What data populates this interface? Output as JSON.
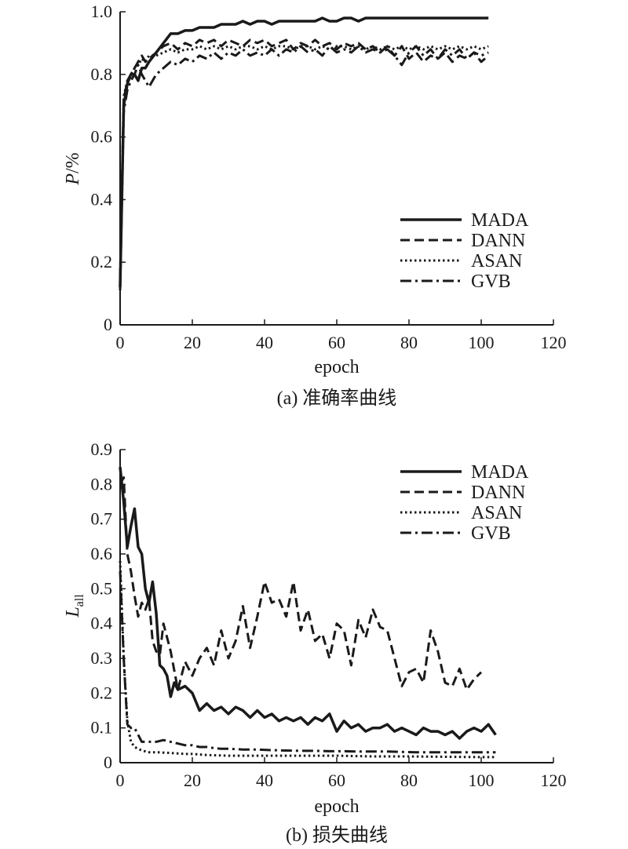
{
  "chart_data": [
    {
      "type": "line",
      "caption": "(a) 准确率曲线",
      "xlabel": "epoch",
      "ylabel_main": "P",
      "ylabel_suffix": "/%",
      "xlim": [
        0,
        120
      ],
      "ylim": [
        0,
        1.0
      ],
      "xticks": [
        "0",
        "20",
        "40",
        "60",
        "80",
        "100",
        "120"
      ],
      "yticks": [
        "0",
        "0.2",
        "0.4",
        "0.6",
        "0.8",
        "1.0"
      ],
      "grid": false,
      "legend_position": "bottom-right",
      "series": [
        {
          "name": "MADA",
          "style": "solid",
          "x": [
            0,
            1,
            2,
            3,
            4,
            5,
            6,
            7,
            8,
            10,
            12,
            14,
            16,
            18,
            20,
            22,
            24,
            26,
            28,
            30,
            32,
            34,
            36,
            38,
            40,
            42,
            44,
            46,
            48,
            50,
            52,
            54,
            56,
            58,
            60,
            62,
            64,
            66,
            68,
            70,
            72,
            74,
            76,
            78,
            80,
            82,
            84,
            86,
            88,
            90,
            92,
            94,
            96,
            98,
            100,
            102
          ],
          "y": [
            0.12,
            0.7,
            0.77,
            0.8,
            0.8,
            0.78,
            0.82,
            0.82,
            0.84,
            0.87,
            0.9,
            0.93,
            0.93,
            0.94,
            0.94,
            0.95,
            0.95,
            0.95,
            0.96,
            0.96,
            0.96,
            0.97,
            0.96,
            0.97,
            0.97,
            0.96,
            0.97,
            0.97,
            0.97,
            0.97,
            0.97,
            0.97,
            0.98,
            0.97,
            0.97,
            0.98,
            0.98,
            0.97,
            0.98,
            0.98,
            0.98,
            0.98,
            0.98,
            0.98,
            0.98,
            0.98,
            0.98,
            0.98,
            0.98,
            0.98,
            0.98,
            0.98,
            0.98,
            0.98,
            0.98,
            0.98
          ]
        },
        {
          "name": "DANN",
          "style": "dashed",
          "x": [
            0,
            1,
            2,
            3,
            4,
            5,
            6,
            7,
            8,
            10,
            12,
            14,
            16,
            18,
            20,
            22,
            24,
            26,
            28,
            30,
            32,
            34,
            36,
            38,
            40,
            42,
            44,
            46,
            48,
            50,
            52,
            54,
            56,
            58,
            60,
            62,
            64,
            66,
            68,
            70,
            72,
            74,
            76,
            78,
            80,
            82,
            84,
            86,
            88,
            90,
            92,
            94,
            96,
            98,
            100,
            102
          ],
          "y": [
            0.15,
            0.72,
            0.78,
            0.8,
            0.82,
            0.84,
            0.86,
            0.84,
            0.85,
            0.87,
            0.89,
            0.9,
            0.88,
            0.9,
            0.89,
            0.91,
            0.9,
            0.91,
            0.89,
            0.91,
            0.9,
            0.89,
            0.91,
            0.9,
            0.91,
            0.89,
            0.9,
            0.91,
            0.88,
            0.9,
            0.89,
            0.91,
            0.89,
            0.9,
            0.88,
            0.9,
            0.89,
            0.9,
            0.88,
            0.89,
            0.87,
            0.89,
            0.86,
            0.89,
            0.85,
            0.87,
            0.84,
            0.86,
            0.85,
            0.87,
            0.84,
            0.86,
            0.85,
            0.87,
            0.84,
            0.86
          ]
        },
        {
          "name": "ASAN",
          "style": "dotted",
          "x": [
            0,
            1,
            2,
            3,
            4,
            5,
            6,
            7,
            8,
            10,
            12,
            14,
            16,
            18,
            20,
            22,
            24,
            26,
            28,
            30,
            32,
            34,
            36,
            38,
            40,
            42,
            44,
            46,
            48,
            50,
            52,
            54,
            56,
            58,
            60,
            62,
            64,
            66,
            68,
            70,
            72,
            74,
            76,
            78,
            80,
            82,
            84,
            86,
            88,
            90,
            92,
            94,
            96,
            98,
            100,
            102
          ],
          "y": [
            0.13,
            0.73,
            0.78,
            0.8,
            0.82,
            0.83,
            0.85,
            0.84,
            0.86,
            0.86,
            0.87,
            0.88,
            0.87,
            0.88,
            0.88,
            0.89,
            0.88,
            0.89,
            0.88,
            0.89,
            0.88,
            0.89,
            0.89,
            0.88,
            0.89,
            0.88,
            0.89,
            0.89,
            0.88,
            0.89,
            0.89,
            0.88,
            0.89,
            0.88,
            0.89,
            0.89,
            0.88,
            0.89,
            0.88,
            0.89,
            0.88,
            0.89,
            0.88,
            0.89,
            0.88,
            0.89,
            0.88,
            0.89,
            0.88,
            0.89,
            0.88,
            0.89,
            0.88,
            0.89,
            0.88,
            0.89
          ]
        },
        {
          "name": "GVB",
          "style": "dashdot",
          "x": [
            0,
            1,
            2,
            3,
            4,
            5,
            6,
            7,
            8,
            10,
            12,
            14,
            16,
            18,
            20,
            22,
            24,
            26,
            28,
            30,
            32,
            34,
            36,
            38,
            40,
            42,
            44,
            46,
            48,
            50,
            52,
            54,
            56,
            58,
            60,
            62,
            64,
            66,
            68,
            70,
            72,
            74,
            76,
            78,
            80,
            82,
            84,
            86,
            88,
            90,
            92,
            94,
            96,
            98,
            100,
            102
          ],
          "y": [
            0.11,
            0.68,
            0.75,
            0.78,
            0.8,
            0.83,
            0.8,
            0.78,
            0.76,
            0.8,
            0.82,
            0.84,
            0.83,
            0.85,
            0.84,
            0.86,
            0.85,
            0.87,
            0.85,
            0.87,
            0.86,
            0.88,
            0.86,
            0.87,
            0.86,
            0.88,
            0.86,
            0.88,
            0.87,
            0.89,
            0.87,
            0.88,
            0.86,
            0.89,
            0.87,
            0.88,
            0.87,
            0.89,
            0.87,
            0.88,
            0.87,
            0.88,
            0.86,
            0.83,
            0.87,
            0.89,
            0.86,
            0.88,
            0.85,
            0.88,
            0.86,
            0.88,
            0.85,
            0.87,
            0.86,
            0.87
          ]
        }
      ]
    },
    {
      "type": "line",
      "caption": "(b) 损失曲线",
      "xlabel": "epoch",
      "ylabel_main": "L",
      "ylabel_sub": "all",
      "xlim": [
        0,
        120
      ],
      "ylim": [
        0,
        0.9
      ],
      "xticks": [
        "0",
        "20",
        "40",
        "60",
        "80",
        "100",
        "120"
      ],
      "yticks": [
        "0",
        "0.1",
        "0.2",
        "0.3",
        "0.4",
        "0.5",
        "0.6",
        "0.7",
        "0.8",
        "0.9"
      ],
      "grid": false,
      "legend_position": "top-right",
      "series": [
        {
          "name": "MADA",
          "style": "solid",
          "x": [
            0,
            1,
            2,
            3,
            4,
            5,
            6,
            7,
            8,
            9,
            10,
            11,
            12,
            13,
            14,
            15,
            16,
            18,
            20,
            22,
            24,
            26,
            28,
            30,
            32,
            34,
            36,
            38,
            40,
            42,
            44,
            46,
            48,
            50,
            52,
            54,
            56,
            58,
            60,
            62,
            64,
            66,
            68,
            70,
            72,
            74,
            76,
            78,
            80,
            82,
            84,
            86,
            88,
            90,
            92,
            94,
            96,
            98,
            100,
            102,
            104
          ],
          "y": [
            0.85,
            0.75,
            0.62,
            0.68,
            0.73,
            0.62,
            0.6,
            0.5,
            0.46,
            0.52,
            0.43,
            0.28,
            0.27,
            0.25,
            0.19,
            0.23,
            0.21,
            0.22,
            0.2,
            0.15,
            0.17,
            0.15,
            0.16,
            0.14,
            0.16,
            0.15,
            0.13,
            0.15,
            0.13,
            0.14,
            0.12,
            0.13,
            0.12,
            0.13,
            0.11,
            0.13,
            0.12,
            0.14,
            0.09,
            0.12,
            0.1,
            0.11,
            0.09,
            0.1,
            0.1,
            0.11,
            0.09,
            0.1,
            0.09,
            0.08,
            0.1,
            0.09,
            0.09,
            0.08,
            0.09,
            0.07,
            0.09,
            0.1,
            0.09,
            0.11,
            0.08
          ]
        },
        {
          "name": "DANN",
          "style": "dashed",
          "x": [
            0,
            1,
            2,
            3,
            4,
            5,
            6,
            7,
            8,
            9,
            10,
            11,
            12,
            14,
            16,
            18,
            20,
            22,
            24,
            26,
            28,
            30,
            32,
            34,
            36,
            38,
            40,
            42,
            44,
            46,
            48,
            50,
            52,
            54,
            56,
            58,
            60,
            62,
            64,
            66,
            68,
            70,
            72,
            74,
            76,
            78,
            80,
            82,
            84,
            86,
            88,
            90,
            92,
            94,
            96,
            98,
            100
          ],
          "y": [
            0.8,
            0.82,
            0.6,
            0.55,
            0.48,
            0.42,
            0.46,
            0.44,
            0.47,
            0.35,
            0.32,
            0.31,
            0.4,
            0.32,
            0.21,
            0.29,
            0.25,
            0.3,
            0.33,
            0.28,
            0.38,
            0.3,
            0.35,
            0.45,
            0.33,
            0.42,
            0.52,
            0.46,
            0.47,
            0.42,
            0.52,
            0.38,
            0.44,
            0.35,
            0.37,
            0.3,
            0.4,
            0.38,
            0.28,
            0.41,
            0.36,
            0.44,
            0.39,
            0.38,
            0.3,
            0.22,
            0.26,
            0.27,
            0.23,
            0.38,
            0.32,
            0.23,
            0.22,
            0.27,
            0.21,
            0.24,
            0.26
          ]
        },
        {
          "name": "ASAN",
          "style": "dotted",
          "x": [
            0,
            1,
            2,
            3,
            4,
            6,
            8,
            10,
            14,
            18,
            20,
            24,
            30,
            40,
            50,
            60,
            70,
            80,
            90,
            100,
            104
          ],
          "y": [
            0.58,
            0.3,
            0.12,
            0.06,
            0.045,
            0.035,
            0.03,
            0.03,
            0.028,
            0.025,
            0.025,
            0.022,
            0.02,
            0.02,
            0.02,
            0.02,
            0.018,
            0.018,
            0.017,
            0.016,
            0.016
          ]
        },
        {
          "name": "GVB",
          "style": "dashdot",
          "x": [
            0,
            1,
            2,
            3,
            4,
            5,
            6,
            8,
            10,
            12,
            14,
            16,
            18,
            20,
            22,
            24,
            26,
            28,
            30,
            34,
            38,
            42,
            46,
            50,
            54,
            58,
            62,
            66,
            70,
            74,
            78,
            82,
            86,
            90,
            94,
            98,
            102,
            104
          ],
          "y": [
            0.55,
            0.3,
            0.11,
            0.1,
            0.1,
            0.08,
            0.06,
            0.06,
            0.06,
            0.065,
            0.06,
            0.055,
            0.05,
            0.05,
            0.045,
            0.045,
            0.042,
            0.04,
            0.04,
            0.038,
            0.038,
            0.036,
            0.035,
            0.034,
            0.034,
            0.033,
            0.033,
            0.032,
            0.032,
            0.032,
            0.031,
            0.03,
            0.03,
            0.03,
            0.03,
            0.03,
            0.03,
            0.03
          ]
        }
      ]
    }
  ]
}
